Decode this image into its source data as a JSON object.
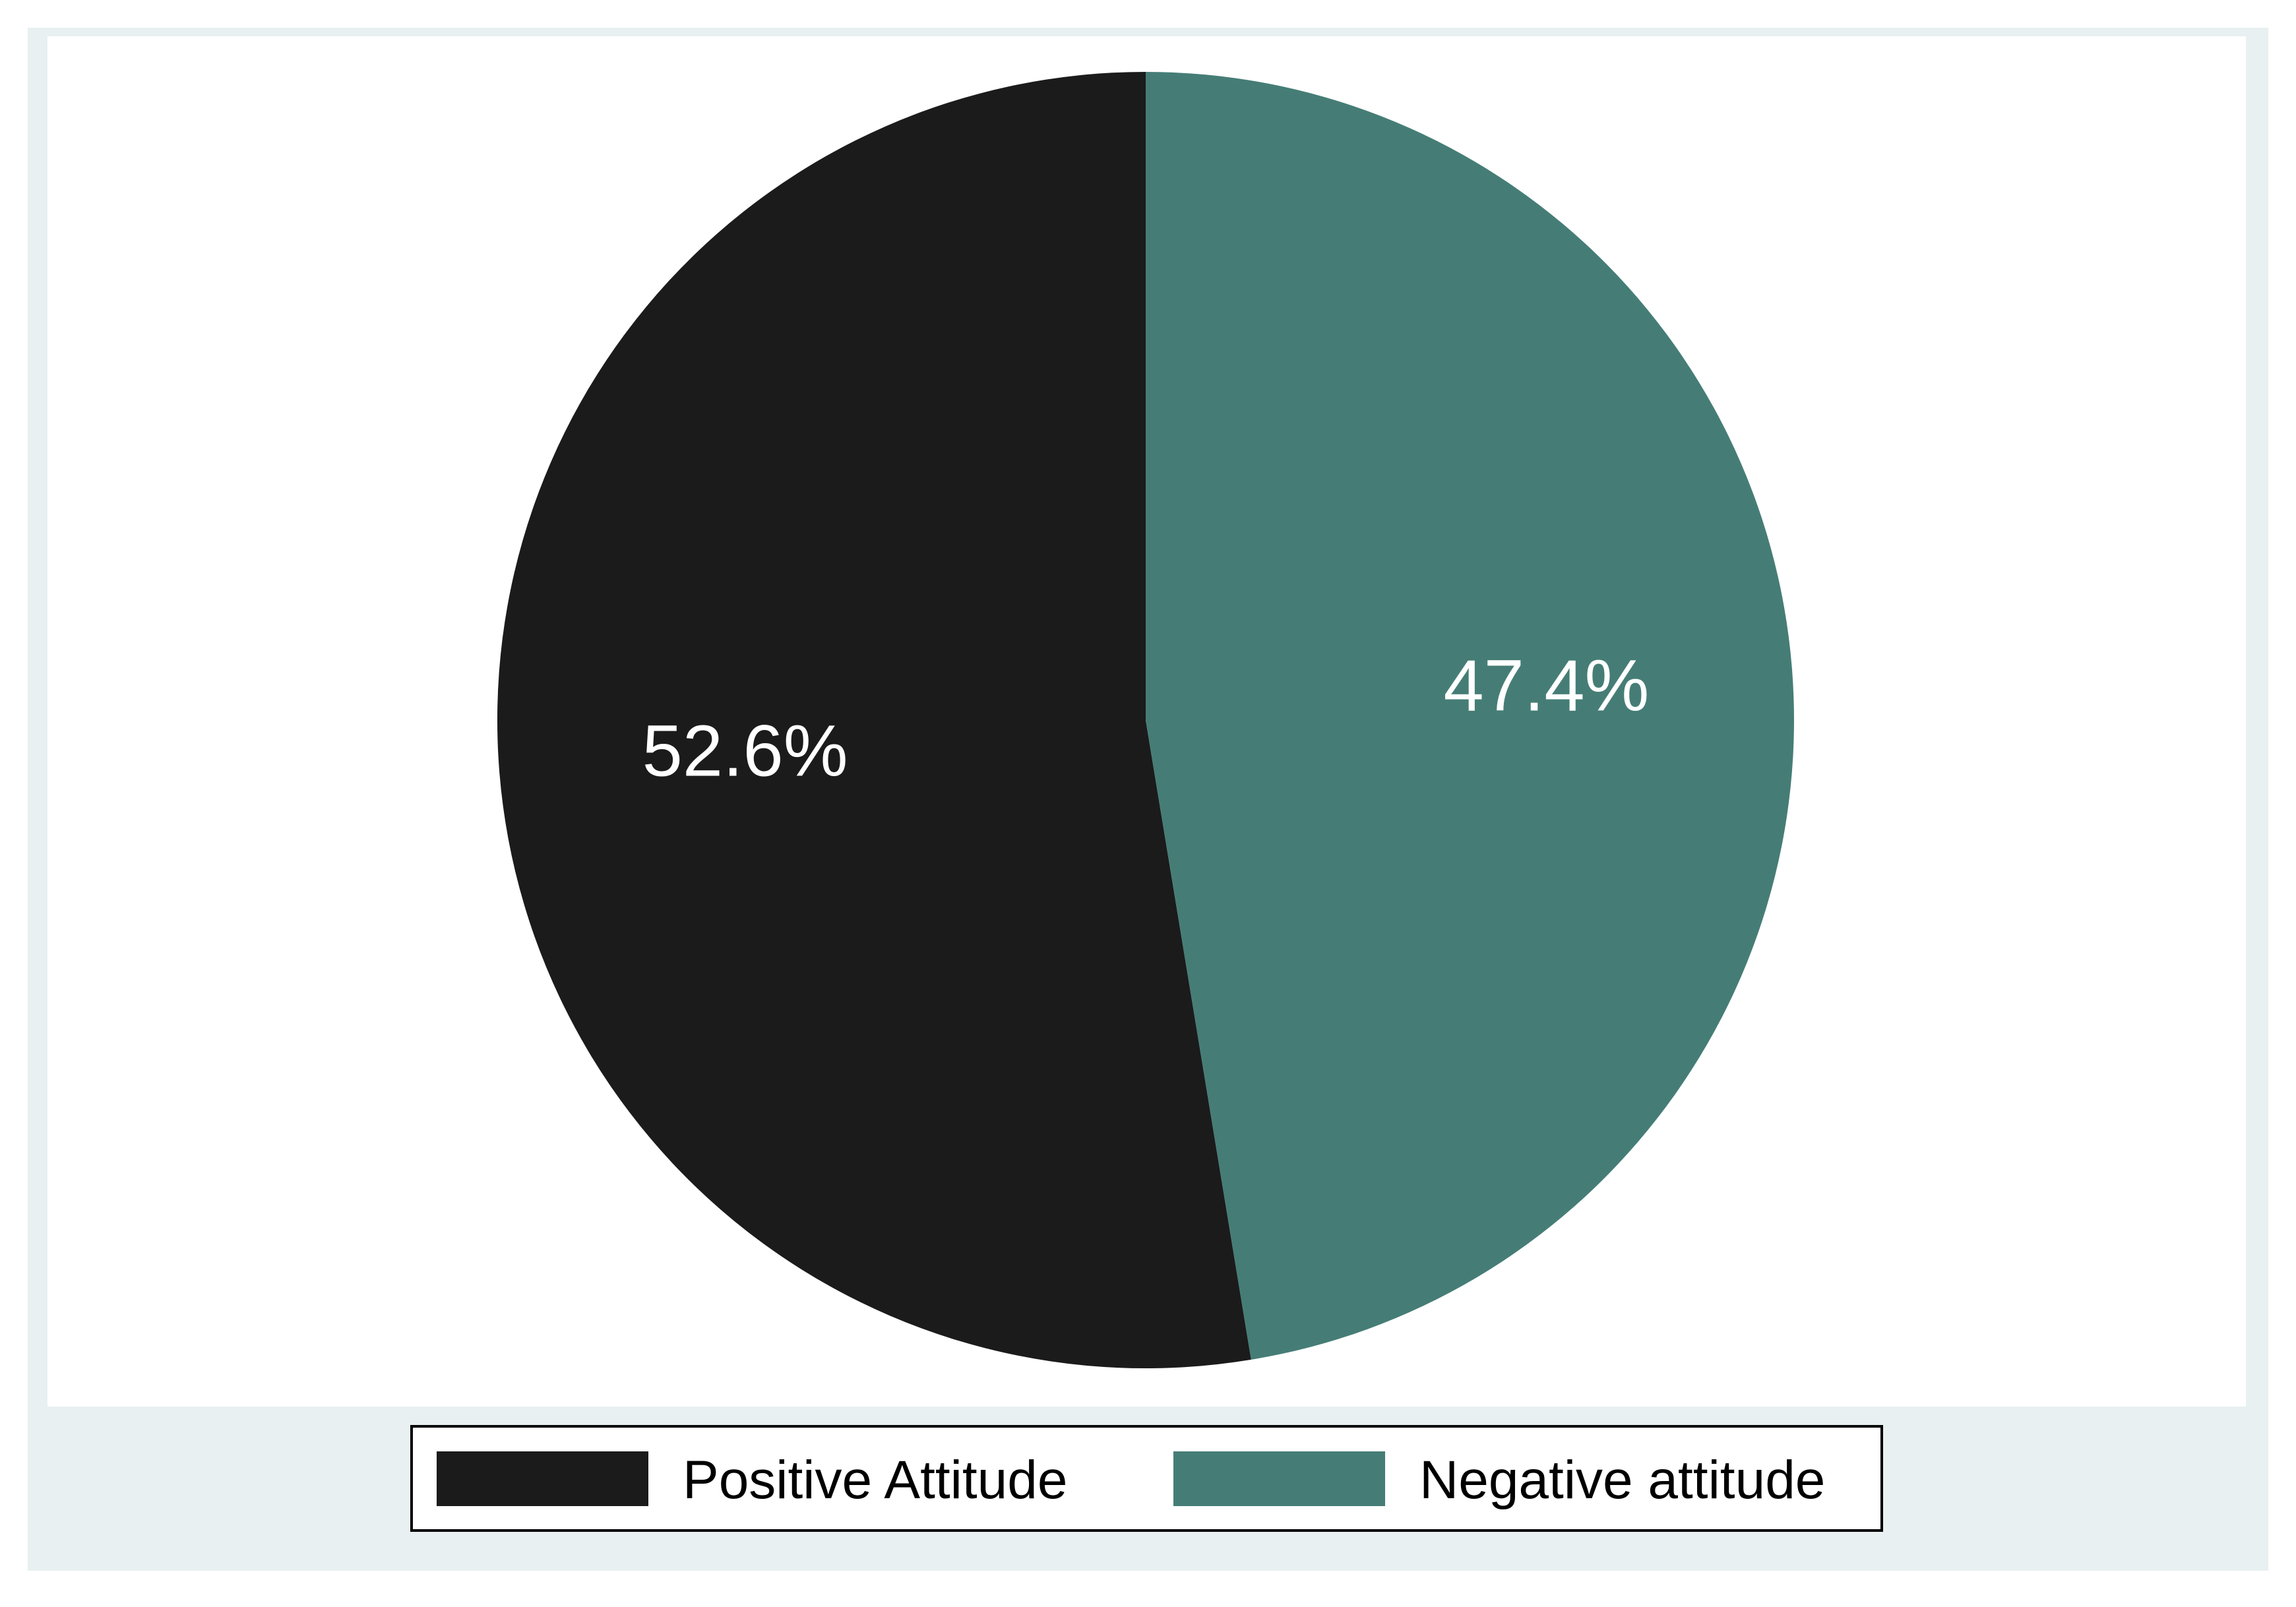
{
  "chart_data": {
    "type": "pie",
    "title": "",
    "slices": [
      {
        "name": "Positive Attitude",
        "value": 52.6,
        "label": "52.6%",
        "color": "#1b1b1b"
      },
      {
        "name": "Negative attitude",
        "value": 47.4,
        "label": "47.4%",
        "color": "#457d76"
      }
    ],
    "legend": {
      "placement": "bottom",
      "entries": [
        "Positive Attitude",
        "Negative attitude"
      ]
    },
    "colors": {
      "outer_background": "#e8f0f1",
      "plot_background": "#ffffff",
      "label_text": "#ffffff",
      "legend_text": "#000000"
    }
  }
}
